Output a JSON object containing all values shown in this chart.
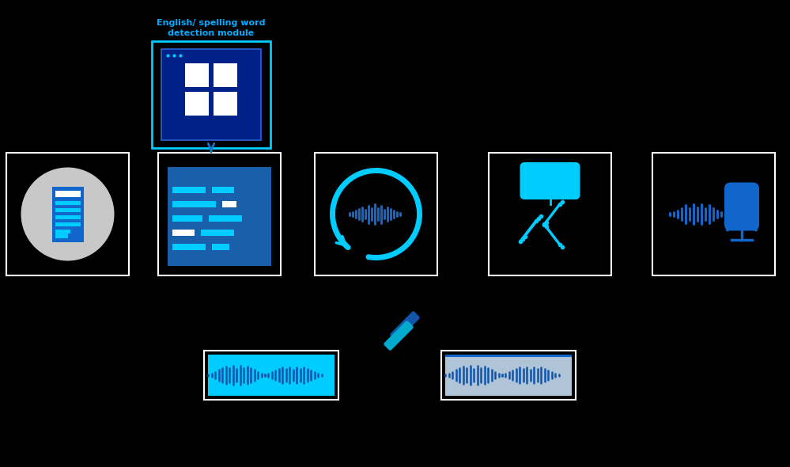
{
  "bg_color": "#000000",
  "white_bg": "#ffffff",
  "title_text": "English/ spelling word\ndetection module",
  "title_color": "#00aaff",
  "arrow_color": "#1177cc",
  "box_border_color": "#ffffff",
  "cyan_color": "#00ccff",
  "blue_color": "#1166cc",
  "mid_blue": "#2255bb",
  "light_blue": "#55aaee",
  "dark_bg": "#000000",
  "gray_circle": "#c8c8c8",
  "light_gray_bg": "#b0c4d8",
  "inner_blue": "#1a5faa",
  "cyan_light": "#40e0ff",
  "tool_blue": "#1155aa",
  "tool_cyan": "#00aacc",
  "waveform_blue": "#1155aa"
}
